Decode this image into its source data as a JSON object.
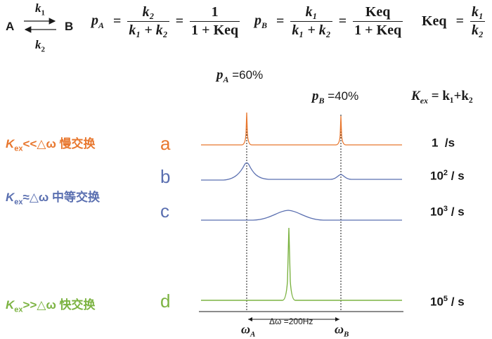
{
  "reaction": {
    "species_a": "A",
    "species_b": "B",
    "forward_rate": "k",
    "forward_sub": "1",
    "reverse_rate": "k",
    "reverse_sub": "2"
  },
  "formulas": {
    "pa_lhs": "p",
    "pa_lhs_sub": "A",
    "pa_num": "k₂",
    "pa_den": "k₁ + k₂",
    "pa_num2": "1",
    "pa_den2": "1 + Keq",
    "pb_lhs": "p",
    "pb_lhs_sub": "B",
    "pb_num": "k₁",
    "pb_den": "k₁ + k₂",
    "pb_num2": "Keq",
    "pb_den2": "1 + Keq",
    "keq_lhs": "Keq",
    "keq_num": "k₁",
    "keq_den": "k₂"
  },
  "populations": {
    "pa_label": "p",
    "pa_sub": "A",
    "pa_value": " =60%",
    "pb_label": "p",
    "pb_sub": "B",
    "pb_value": " =40%"
  },
  "kex_header": {
    "symbol": "K",
    "sub": "ex",
    "rhs": " = k₁+k₂"
  },
  "regimes": [
    {
      "symbol": "K",
      "sub": "ex",
      "relation": "<<△ω 慢交换",
      "color": "#e8772e"
    },
    {
      "symbol": "K",
      "sub": "ex",
      "relation": "≈△ω 中等交换",
      "color": "#5a6fb0"
    },
    {
      "symbol": "K",
      "sub": "ex",
      "relation": ">>△ω 快交换",
      "color": "#7cb342"
    }
  ],
  "spectra": [
    {
      "letter": "a",
      "rate_base": "1",
      "rate_exp": "",
      "rate_unit": "  /s",
      "color": "#e8772e"
    },
    {
      "letter": "b",
      "rate_base": "10",
      "rate_exp": "2",
      "rate_unit": " / s",
      "color": "#5a6fb0"
    },
    {
      "letter": "c",
      "rate_base": "10",
      "rate_exp": "3",
      "rate_unit": " / s",
      "color": "#5a6fb0"
    },
    {
      "letter": "d",
      "rate_base": "10",
      "rate_exp": "5",
      "rate_unit": " / s",
      "color": "#7cb342"
    }
  ],
  "axis": {
    "delta_label": "Δω =200Hz",
    "omega": "ω",
    "omega_a_sub": "A",
    "omega_b_sub": "B"
  }
}
